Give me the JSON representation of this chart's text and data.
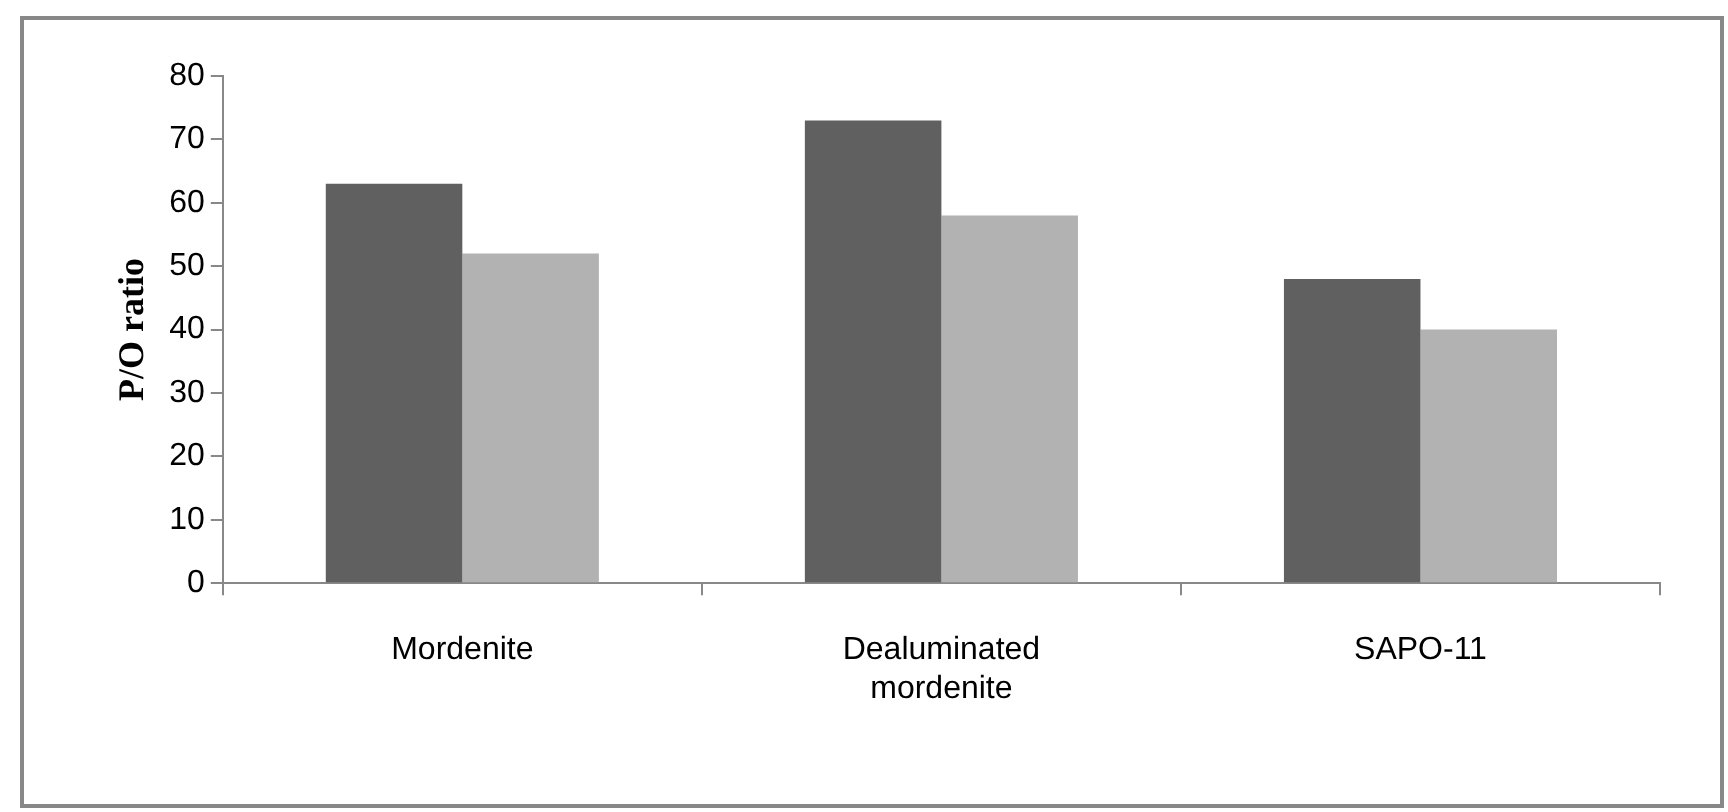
{
  "chart_data": {
    "type": "bar",
    "ylabel": "P/O ratio",
    "categories": [
      "Mordenite",
      "Dealuminated mordenite",
      "SAPO-11"
    ],
    "series": [
      {
        "color": "#606060",
        "values": [
          63,
          73,
          48
        ]
      },
      {
        "color": "#b2b2b2",
        "values": [
          52,
          58,
          40
        ]
      }
    ],
    "ylim": [
      0,
      80
    ],
    "yticks": [
      0,
      10,
      20,
      30,
      40,
      50,
      60,
      70,
      80
    ],
    "grid": false,
    "legend": false
  }
}
